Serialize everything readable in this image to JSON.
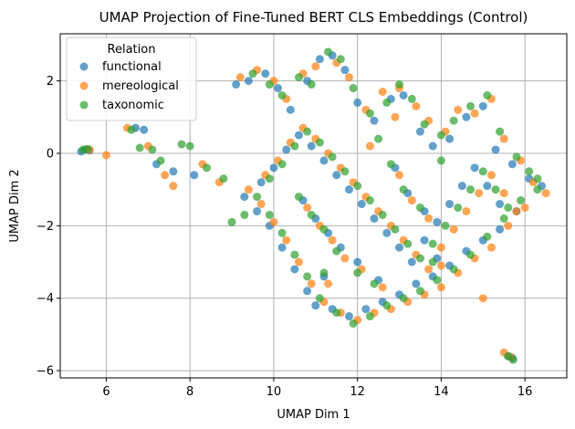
{
  "chart_data": {
    "type": "scatter",
    "title": "UMAP Projection of Fine-Tuned BERT CLS Embeddings (Control)",
    "xlabel": "UMAP Dim 1",
    "ylabel": "UMAP Dim 2",
    "xlim": [
      4.9,
      17.0
    ],
    "ylim": [
      -6.2,
      3.3
    ],
    "xticks": [
      6,
      8,
      10,
      12,
      14,
      16
    ],
    "yticks": [
      -6,
      -4,
      -2,
      0,
      2
    ],
    "grid": true,
    "legend": {
      "title": "Relation",
      "placement": "top-left"
    },
    "series": [
      {
        "name": "functional",
        "color": "#1f77b4",
        "points": [
          [
            5.4,
            0.05
          ],
          [
            5.5,
            0.1
          ],
          [
            5.6,
            0.08
          ],
          [
            6.7,
            0.7
          ],
          [
            6.9,
            0.65
          ],
          [
            7.2,
            -0.3
          ],
          [
            7.6,
            -0.5
          ],
          [
            8.1,
            -0.6
          ],
          [
            9.1,
            1.9
          ],
          [
            9.4,
            2.0
          ],
          [
            9.8,
            2.2
          ],
          [
            10.1,
            1.8
          ],
          [
            10.4,
            1.2
          ],
          [
            10.8,
            2.0
          ],
          [
            11.1,
            2.6
          ],
          [
            11.4,
            2.7
          ],
          [
            11.7,
            2.3
          ],
          [
            12.0,
            1.4
          ],
          [
            12.4,
            0.9
          ],
          [
            12.8,
            1.5
          ],
          [
            13.1,
            1.6
          ],
          [
            13.5,
            0.6
          ],
          [
            13.8,
            0.2
          ],
          [
            14.2,
            0.4
          ],
          [
            14.6,
            1.0
          ],
          [
            15.0,
            1.3
          ],
          [
            15.3,
            0.1
          ],
          [
            15.7,
            -0.3
          ],
          [
            16.1,
            -0.7
          ],
          [
            16.4,
            -0.9
          ],
          [
            15.8,
            -1.6
          ],
          [
            15.4,
            -2.1
          ],
          [
            15.0,
            -2.4
          ],
          [
            14.6,
            -2.7
          ],
          [
            14.2,
            -3.1
          ],
          [
            13.8,
            -3.4
          ],
          [
            13.4,
            -3.6
          ],
          [
            13.0,
            -3.9
          ],
          [
            12.6,
            -4.1
          ],
          [
            12.2,
            -4.3
          ],
          [
            11.8,
            -4.5
          ],
          [
            11.4,
            -4.3
          ],
          [
            11.0,
            -4.2
          ],
          [
            10.8,
            -3.8
          ],
          [
            10.5,
            -3.2
          ],
          [
            10.2,
            -2.6
          ],
          [
            9.9,
            -2.0
          ],
          [
            9.6,
            -1.6
          ],
          [
            9.3,
            -1.2
          ],
          [
            9.7,
            -0.8
          ],
          [
            10.0,
            -0.4
          ],
          [
            10.3,
            0.1
          ],
          [
            10.6,
            0.5
          ],
          [
            10.9,
            0.2
          ],
          [
            11.2,
            -0.2
          ],
          [
            11.5,
            -0.6
          ],
          [
            11.8,
            -1.0
          ],
          [
            12.1,
            -1.4
          ],
          [
            12.4,
            -1.8
          ],
          [
            12.7,
            -2.2
          ],
          [
            13.0,
            -2.6
          ],
          [
            13.3,
            -3.0
          ],
          [
            13.6,
            -2.4
          ],
          [
            13.9,
            -1.9
          ],
          [
            14.2,
            -1.4
          ],
          [
            14.5,
            -0.9
          ],
          [
            14.8,
            -0.4
          ],
          [
            15.1,
            -0.9
          ],
          [
            15.4,
            -1.4
          ],
          [
            12.0,
            -3.0
          ],
          [
            11.6,
            -2.6
          ],
          [
            11.2,
            -3.4
          ],
          [
            12.9,
            -0.4
          ],
          [
            13.2,
            -1.1
          ],
          [
            13.6,
            -1.6
          ],
          [
            10.7,
            -1.3
          ],
          [
            11.0,
            -1.8
          ],
          [
            11.3,
            -2.2
          ],
          [
            12.5,
            -3.5
          ],
          [
            13.9,
            -2.9
          ],
          [
            15.6,
            -5.6
          ],
          [
            15.7,
            -5.65
          ]
        ]
      },
      {
        "name": "mereological",
        "color": "#ff7f0e",
        "points": [
          [
            5.6,
            0.1
          ],
          [
            6.0,
            -0.05
          ],
          [
            6.5,
            0.7
          ],
          [
            7.0,
            0.2
          ],
          [
            7.4,
            -0.6
          ],
          [
            7.6,
            -0.9
          ],
          [
            8.3,
            -0.3
          ],
          [
            8.7,
            -0.8
          ],
          [
            9.2,
            2.1
          ],
          [
            9.6,
            2.3
          ],
          [
            10.0,
            2.0
          ],
          [
            10.3,
            1.5
          ],
          [
            10.7,
            2.2
          ],
          [
            11.0,
            2.4
          ],
          [
            11.5,
            2.5
          ],
          [
            11.8,
            2.1
          ],
          [
            12.2,
            1.2
          ],
          [
            12.6,
            1.7
          ],
          [
            13.0,
            1.8
          ],
          [
            13.4,
            1.3
          ],
          [
            13.7,
            0.9
          ],
          [
            14.1,
            0.6
          ],
          [
            14.4,
            1.2
          ],
          [
            14.8,
            1.1
          ],
          [
            15.2,
            1.5
          ],
          [
            15.5,
            0.4
          ],
          [
            15.9,
            -0.2
          ],
          [
            16.2,
            -0.8
          ],
          [
            16.5,
            -1.1
          ],
          [
            16.0,
            -1.5
          ],
          [
            15.6,
            -2.0
          ],
          [
            15.2,
            -2.6
          ],
          [
            14.8,
            -2.9
          ],
          [
            14.4,
            -3.3
          ],
          [
            14.0,
            -3.7
          ],
          [
            13.6,
            -3.9
          ],
          [
            13.2,
            -4.1
          ],
          [
            12.8,
            -4.3
          ],
          [
            12.4,
            -4.4
          ],
          [
            12.0,
            -4.6
          ],
          [
            11.6,
            -4.4
          ],
          [
            11.2,
            -4.1
          ],
          [
            10.9,
            -3.6
          ],
          [
            10.6,
            -3.0
          ],
          [
            10.3,
            -2.4
          ],
          [
            10.0,
            -1.9
          ],
          [
            9.7,
            -1.4
          ],
          [
            9.4,
            -1.0
          ],
          [
            9.8,
            -0.6
          ],
          [
            10.1,
            -0.2
          ],
          [
            10.4,
            0.3
          ],
          [
            10.7,
            0.7
          ],
          [
            11.0,
            0.4
          ],
          [
            11.3,
            0.0
          ],
          [
            11.6,
            -0.4
          ],
          [
            11.9,
            -0.8
          ],
          [
            12.2,
            -1.2
          ],
          [
            12.5,
            -1.6
          ],
          [
            12.8,
            -2.0
          ],
          [
            13.1,
            -2.4
          ],
          [
            13.4,
            -2.8
          ],
          [
            13.7,
            -3.2
          ],
          [
            14.0,
            -2.6
          ],
          [
            14.3,
            -2.1
          ],
          [
            14.6,
            -1.6
          ],
          [
            14.9,
            -1.1
          ],
          [
            15.2,
            -0.6
          ],
          [
            15.5,
            -1.1
          ],
          [
            15.8,
            -1.6
          ],
          [
            12.1,
            -3.2
          ],
          [
            11.7,
            -2.9
          ],
          [
            11.3,
            -3.6
          ],
          [
            13.0,
            -0.6
          ],
          [
            13.3,
            -1.3
          ],
          [
            13.7,
            -1.8
          ],
          [
            10.8,
            -1.5
          ],
          [
            11.1,
            -2.0
          ],
          [
            11.4,
            -2.4
          ],
          [
            12.6,
            -3.7
          ],
          [
            14.0,
            -3.1
          ],
          [
            15.0,
            -4.0
          ],
          [
            12.3,
            0.2
          ],
          [
            12.9,
            1.0
          ],
          [
            15.5,
            -5.5
          ],
          [
            15.65,
            -5.62
          ]
        ]
      },
      {
        "name": "taxonomic",
        "color": "#2ca02c",
        "points": [
          [
            5.45,
            0.1
          ],
          [
            5.55,
            0.12
          ],
          [
            6.6,
            0.65
          ],
          [
            6.8,
            0.15
          ],
          [
            7.1,
            0.1
          ],
          [
            7.3,
            -0.2
          ],
          [
            7.8,
            0.25
          ],
          [
            8.0,
            0.2
          ],
          [
            8.4,
            -0.4
          ],
          [
            8.8,
            -0.7
          ],
          [
            9.0,
            -1.9
          ],
          [
            9.3,
            -1.7
          ],
          [
            9.5,
            2.2
          ],
          [
            9.9,
            1.9
          ],
          [
            10.2,
            1.6
          ],
          [
            10.6,
            2.1
          ],
          [
            10.9,
            1.9
          ],
          [
            11.3,
            2.8
          ],
          [
            11.6,
            2.6
          ],
          [
            11.9,
            1.8
          ],
          [
            12.3,
            1.1
          ],
          [
            12.7,
            1.4
          ],
          [
            13.0,
            1.9
          ],
          [
            13.3,
            1.5
          ],
          [
            13.6,
            0.8
          ],
          [
            14.0,
            0.5
          ],
          [
            14.3,
            0.9
          ],
          [
            14.7,
            1.3
          ],
          [
            15.1,
            1.6
          ],
          [
            15.4,
            0.6
          ],
          [
            15.8,
            -0.1
          ],
          [
            16.1,
            -0.5
          ],
          [
            16.3,
            -1.0
          ],
          [
            15.9,
            -1.3
          ],
          [
            15.5,
            -1.8
          ],
          [
            15.1,
            -2.3
          ],
          [
            14.7,
            -2.8
          ],
          [
            14.3,
            -3.2
          ],
          [
            13.9,
            -3.5
          ],
          [
            13.5,
            -3.8
          ],
          [
            13.1,
            -4.0
          ],
          [
            12.7,
            -4.2
          ],
          [
            12.3,
            -4.5
          ],
          [
            11.9,
            -4.7
          ],
          [
            11.5,
            -4.4
          ],
          [
            11.1,
            -4.0
          ],
          [
            10.8,
            -3.4
          ],
          [
            10.5,
            -2.8
          ],
          [
            10.2,
            -2.2
          ],
          [
            9.9,
            -1.7
          ],
          [
            9.6,
            -1.2
          ],
          [
            9.9,
            -0.7
          ],
          [
            10.2,
            -0.3
          ],
          [
            10.5,
            0.2
          ],
          [
            10.8,
            0.6
          ],
          [
            11.1,
            0.3
          ],
          [
            11.4,
            -0.1
          ],
          [
            11.7,
            -0.5
          ],
          [
            12.0,
            -0.9
          ],
          [
            12.3,
            -1.3
          ],
          [
            12.6,
            -1.7
          ],
          [
            12.9,
            -2.1
          ],
          [
            13.2,
            -2.5
          ],
          [
            13.5,
            -2.9
          ],
          [
            13.8,
            -2.5
          ],
          [
            14.1,
            -2.0
          ],
          [
            14.4,
            -1.5
          ],
          [
            14.7,
            -1.0
          ],
          [
            15.0,
            -0.5
          ],
          [
            15.3,
            -1.0
          ],
          [
            15.6,
            -1.5
          ],
          [
            12.0,
            -3.3
          ],
          [
            11.5,
            -2.7
          ],
          [
            11.2,
            -3.3
          ],
          [
            12.8,
            -0.3
          ],
          [
            13.1,
            -1.0
          ],
          [
            13.5,
            -1.5
          ],
          [
            10.6,
            -1.2
          ],
          [
            10.9,
            -1.7
          ],
          [
            11.2,
            -2.1
          ],
          [
            12.4,
            -3.6
          ],
          [
            13.8,
            -3.0
          ],
          [
            16.3,
            -0.7
          ],
          [
            15.6,
            -5.6
          ],
          [
            15.72,
            -5.7
          ],
          [
            12.5,
            0.4
          ],
          [
            14.0,
            -0.2
          ]
        ]
      }
    ]
  }
}
